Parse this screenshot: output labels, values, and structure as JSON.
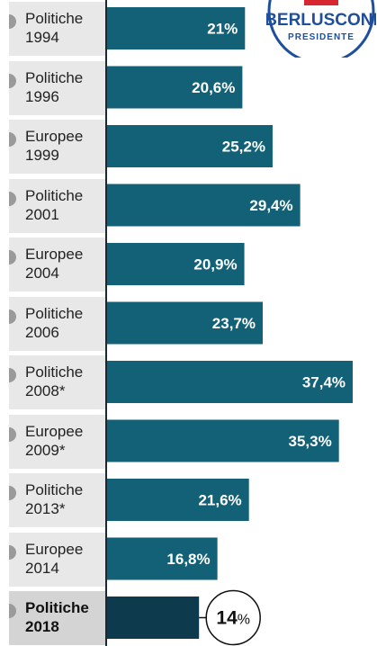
{
  "chart_data": {
    "type": "bar",
    "orientation": "horizontal",
    "categories": [
      [
        "Politiche",
        "1994"
      ],
      [
        "Politiche",
        "1996"
      ],
      [
        "Europee",
        "1999"
      ],
      [
        "Politiche",
        "2001"
      ],
      [
        "Europee",
        "2004"
      ],
      [
        "Politiche",
        "2006"
      ],
      [
        "Politiche",
        "2008*"
      ],
      [
        "Europee",
        "2009*"
      ],
      [
        "Politiche",
        "2013*"
      ],
      [
        "Europee",
        "2014"
      ],
      [
        "Politiche",
        "2018"
      ]
    ],
    "values": [
      21,
      20.6,
      25.2,
      29.4,
      20.9,
      23.7,
      37.4,
      35.3,
      21.6,
      16.8,
      14
    ],
    "value_labels": [
      "21%",
      "20,6%",
      "25,2%",
      "29,4%",
      "20,9%",
      "23,7%",
      "37,4%",
      "35,3%",
      "21,6%",
      "16,8%",
      "14"
    ],
    "highlight_index": 10,
    "callout_suffix": "%",
    "colors": {
      "bar": "#136176",
      "bar_highlight": "#0d3a4d",
      "value_text": "#ffffff"
    }
  },
  "logo": {
    "line1": "BERLUSCONI",
    "line2": "PRESIDENTE",
    "colors": {
      "ring": "#1d4f9c",
      "red": "#d6262f"
    }
  }
}
